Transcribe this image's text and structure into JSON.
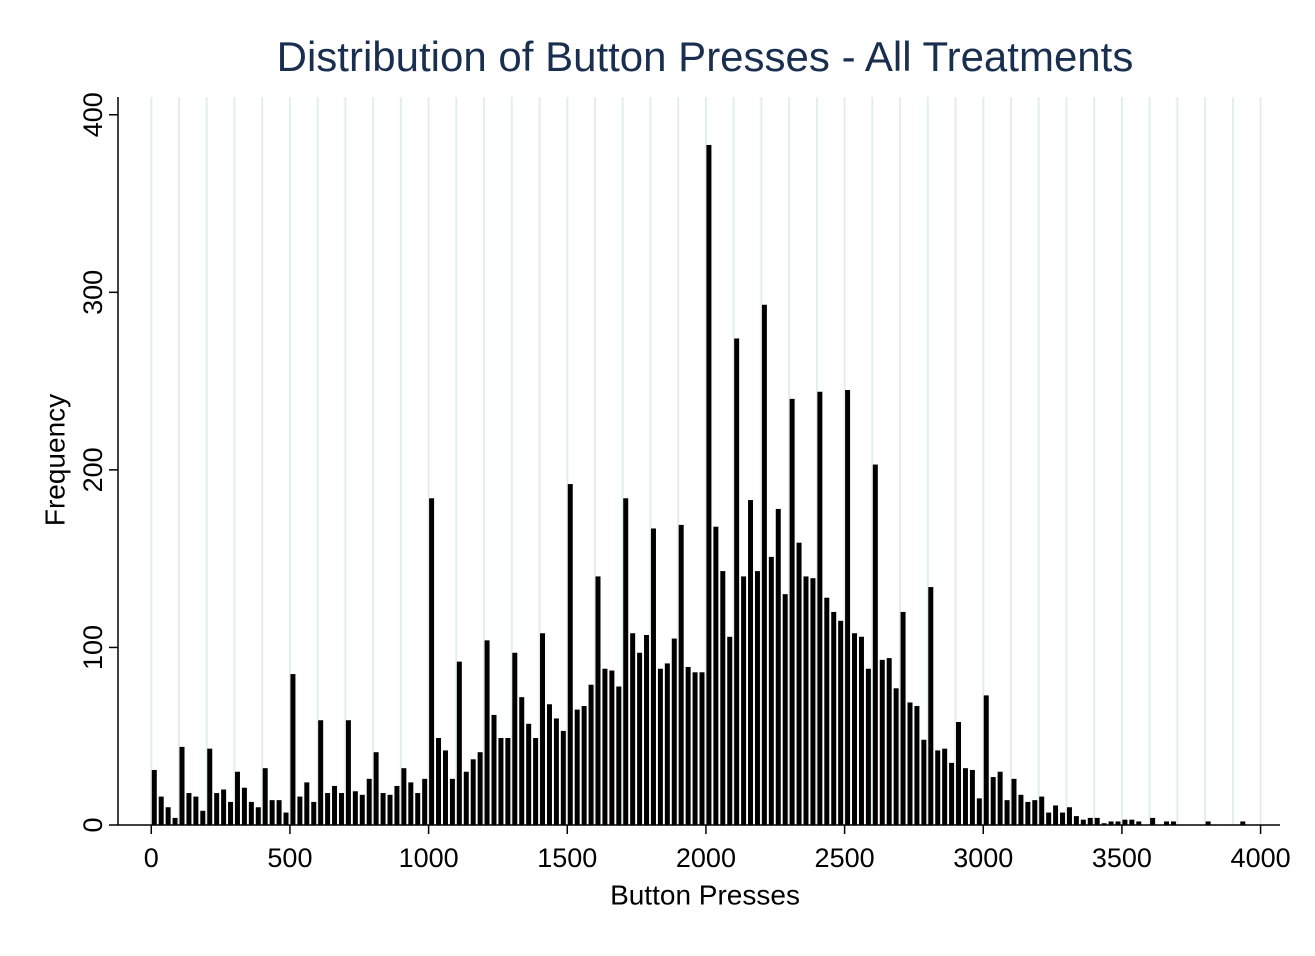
{
  "chart_data": {
    "type": "histogram",
    "title": "Distribution of Button Presses - All Treatments",
    "xlabel": "Button Presses",
    "ylabel": "Frequency",
    "color": "#000000",
    "bins": [
      0,
      25,
      50,
      75,
      100,
      125,
      150,
      175,
      200,
      225,
      250,
      275,
      300,
      325,
      350,
      375,
      400,
      425,
      450,
      475,
      500,
      525,
      550,
      575,
      600,
      625,
      650,
      675,
      700,
      725,
      750,
      775,
      800,
      825,
      850,
      875,
      900,
      925,
      950,
      975,
      1000,
      1025,
      1050,
      1075,
      1100,
      1125,
      1150,
      1175,
      1200,
      1225,
      1250,
      1275,
      1300,
      1325,
      1350,
      1375,
      1400,
      1425,
      1450,
      1475,
      1500,
      1525,
      1550,
      1575,
      1600,
      1625,
      1650,
      1675,
      1700,
      1725,
      1750,
      1775,
      1800,
      1825,
      1850,
      1875,
      1900,
      1925,
      1950,
      1975,
      2000,
      2025,
      2050,
      2075,
      2100,
      2125,
      2150,
      2175,
      2200,
      2225,
      2250,
      2275,
      2300,
      2325,
      2350,
      2375,
      2400,
      2425,
      2450,
      2475,
      2500,
      2525,
      2550,
      2575,
      2600,
      2625,
      2650,
      2675,
      2700,
      2725,
      2750,
      2775,
      2800,
      2825,
      2850,
      2875,
      2900,
      2925,
      2950,
      2975,
      3000,
      3025,
      3050,
      3075,
      3100,
      3125,
      3150,
      3175,
      3200,
      3225,
      3250,
      3275,
      3300,
      3325,
      3350,
      3375,
      3400,
      3425,
      3450,
      3475,
      3500,
      3525,
      3550,
      3575,
      3600,
      3625,
      3650,
      3675,
      3700,
      3725,
      3750,
      3775,
      3800,
      3825,
      3850,
      3875,
      3900,
      3925,
      3950
    ],
    "values": [
      31,
      16,
      10,
      4,
      44,
      18,
      16,
      8,
      43,
      18,
      20,
      13,
      30,
      21,
      13,
      10,
      32,
      14,
      14,
      7,
      85,
      16,
      24,
      13,
      59,
      18,
      22,
      18,
      59,
      19,
      17,
      26,
      41,
      18,
      17,
      22,
      32,
      24,
      18,
      26,
      184,
      49,
      42,
      26,
      92,
      30,
      37,
      41,
      104,
      62,
      49,
      49,
      97,
      72,
      57,
      49,
      108,
      68,
      60,
      53,
      192,
      65,
      67,
      79,
      140,
      88,
      87,
      78,
      184,
      108,
      97,
      107,
      167,
      88,
      91,
      105,
      169,
      89,
      86,
      86,
      383,
      168,
      143,
      106,
      274,
      140,
      183,
      143,
      293,
      151,
      178,
      130,
      240,
      159,
      140,
      139,
      244,
      128,
      120,
      115,
      245,
      108,
      106,
      88,
      203,
      93,
      94,
      77,
      120,
      69,
      67,
      48,
      134,
      42,
      43,
      35,
      58,
      32,
      31,
      15,
      73,
      27,
      30,
      14,
      26,
      17,
      13,
      14,
      16,
      7,
      11,
      7,
      10,
      5,
      3,
      4,
      4,
      1,
      2,
      2,
      3,
      3,
      2,
      0,
      4,
      0,
      2,
      2,
      0,
      0,
      0,
      0,
      2,
      0,
      0,
      0,
      0,
      2
    ],
    "xlim": [
      -120,
      4070
    ],
    "ylim": [
      0,
      410
    ],
    "xticks": [
      0,
      500,
      1000,
      1500,
      2000,
      2500,
      3000,
      3500,
      4000
    ],
    "yticks": [
      0,
      100,
      200,
      300,
      400
    ],
    "xgrid": [
      0,
      100,
      200,
      300,
      400,
      500,
      600,
      700,
      800,
      900,
      1000,
      1100,
      1200,
      1300,
      1400,
      1500,
      1600,
      1700,
      1800,
      1900,
      2000,
      2100,
      2200,
      2300,
      2400,
      2500,
      2600,
      2700,
      2800,
      2900,
      3000,
      3100,
      3200,
      3300,
      3400,
      3500,
      3600,
      3700,
      3800,
      3900,
      4000
    ],
    "grid_color": "#e2eeee"
  }
}
